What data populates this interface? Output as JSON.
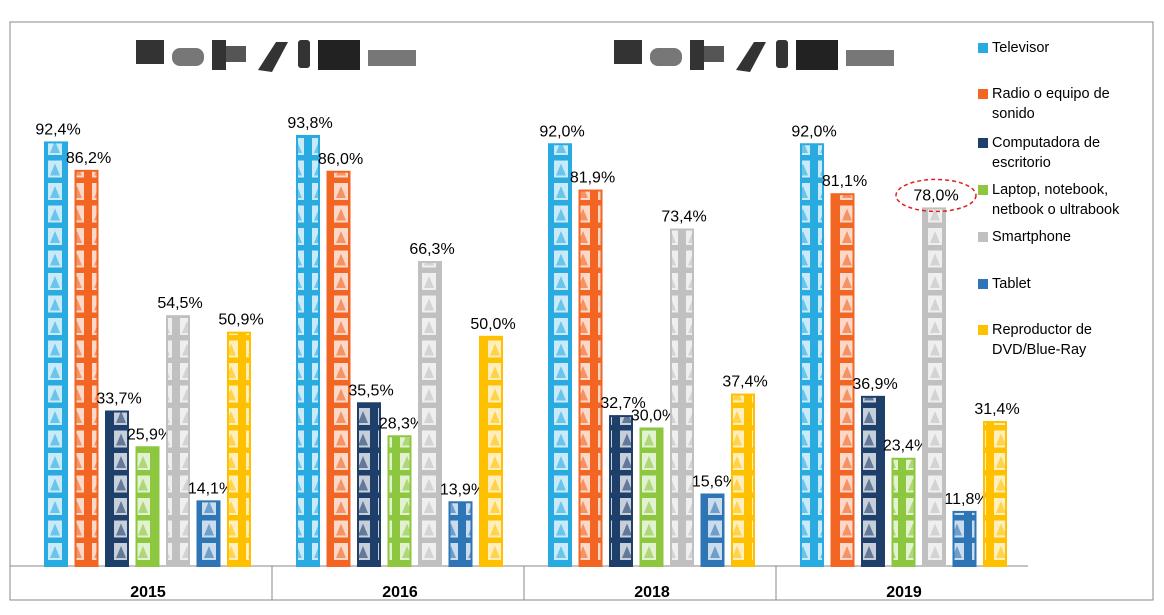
{
  "chart_data": {
    "type": "bar",
    "categories": [
      "2015",
      "2016",
      "2018",
      "2019"
    ],
    "series": [
      {
        "name": "Televisor",
        "color": "#29abe2",
        "values": [
          92.4,
          93.8,
          92.0,
          92.0
        ],
        "value_labels": [
          "92,4%",
          "93,8%",
          "92,0%",
          "92,0%"
        ]
      },
      {
        "name": "Radio o equipo de sonido",
        "color": "#f26522",
        "values": [
          86.2,
          86.0,
          81.9,
          81.1
        ],
        "value_labels": [
          "86,2%",
          "86,0%",
          "81,9%",
          "81,1%"
        ]
      },
      {
        "name": "Computadora de escritorio",
        "color": "#1f3f6b",
        "values": [
          33.7,
          35.5,
          32.7,
          36.9
        ],
        "value_labels": [
          "33,7%",
          "35,5%",
          "32,7%",
          "36,9%"
        ]
      },
      {
        "name": "Laptop, notebook, netbook o ultrabook",
        "color": "#8dc63f",
        "values": [
          25.9,
          28.3,
          30.0,
          23.4
        ],
        "value_labels": [
          "25,9%",
          "28,3%",
          "30,0%",
          "23,4%"
        ]
      },
      {
        "name": "Smartphone",
        "color": "#c0c0c0",
        "values": [
          54.5,
          66.3,
          73.4,
          78.0
        ],
        "value_labels": [
          "54,5%",
          "66,3%",
          "73,4%",
          "78,0%"
        ]
      },
      {
        "name": "Tablet",
        "color": "#2e75b6",
        "values": [
          14.1,
          13.9,
          15.6,
          11.8
        ],
        "value_labels": [
          "14,1%",
          "13,9%",
          "15,6%",
          "11,8%"
        ]
      },
      {
        "name": "Reproductor de DVD/Blue-Ray",
        "color": "#ffc000",
        "values": [
          50.9,
          50.0,
          37.4,
          31.4
        ],
        "value_labels": [
          "50,9%",
          "50,0%",
          "37,4%",
          "31,4%"
        ]
      }
    ]
  }
}
